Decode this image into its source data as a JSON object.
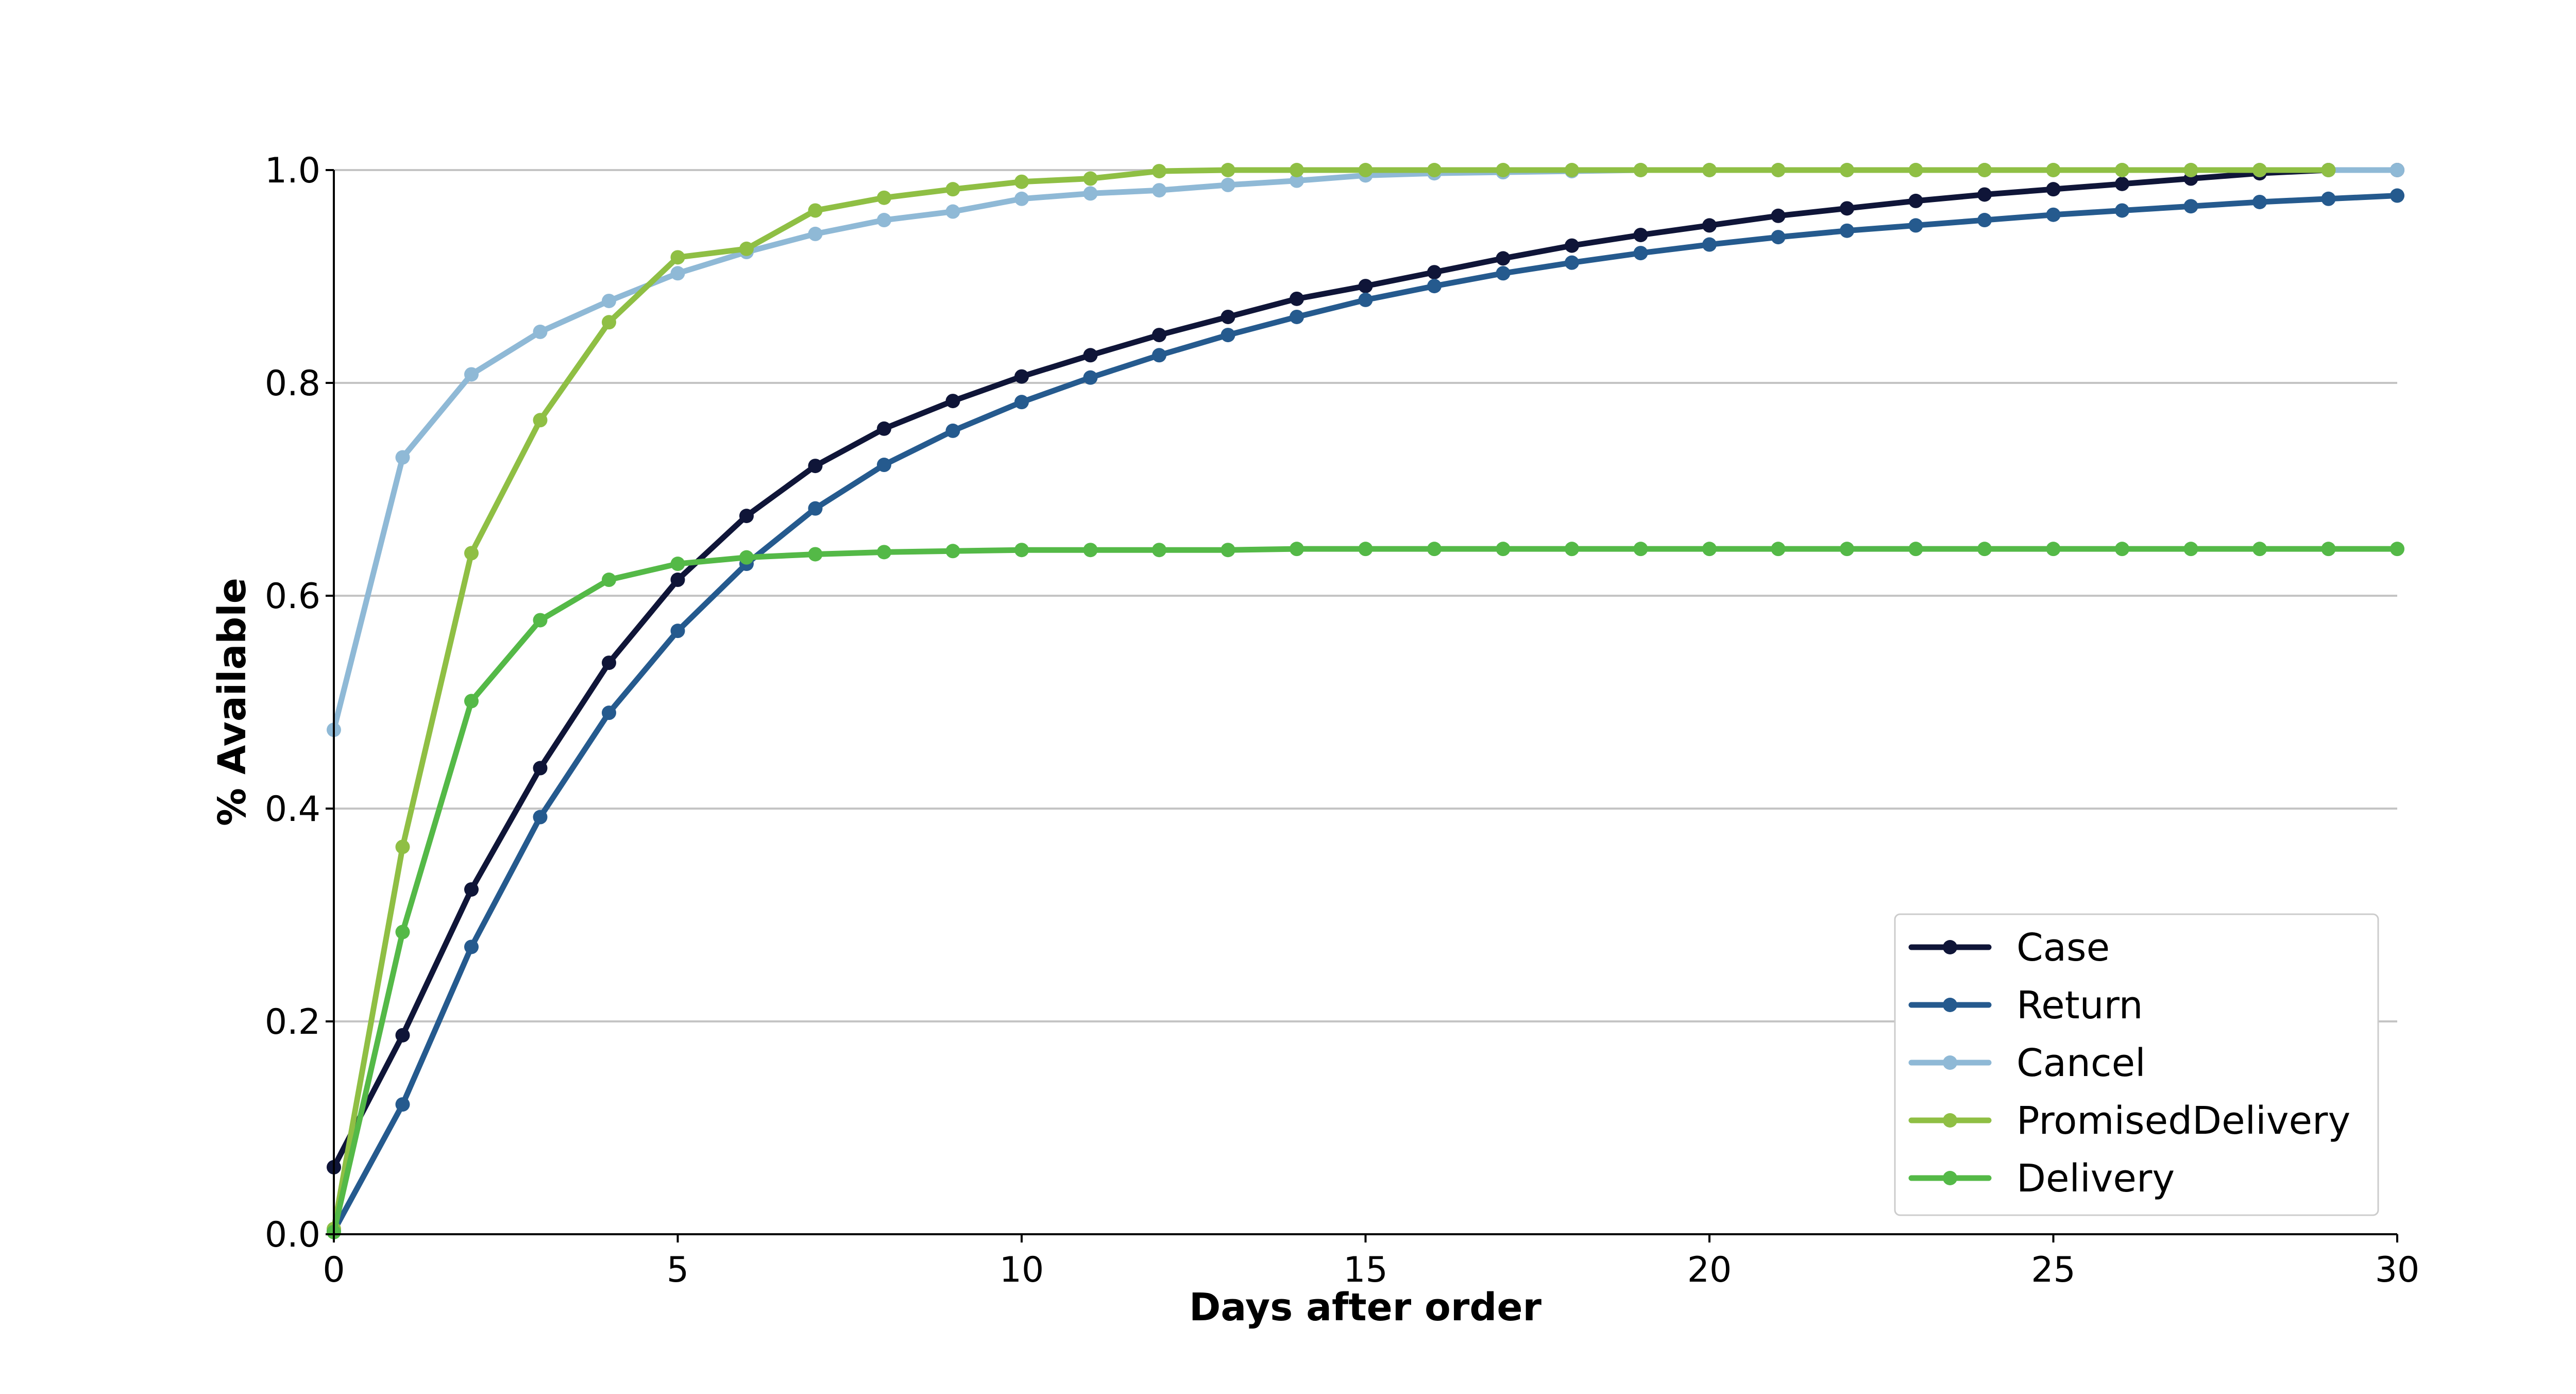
{
  "chart_data": {
    "type": "line",
    "title": "",
    "xlabel": "Days after order",
    "ylabel": "% Available",
    "xlim": [
      0,
      30
    ],
    "ylim": [
      0,
      1
    ],
    "xticks": [
      0,
      5,
      10,
      15,
      20,
      25,
      30
    ],
    "xtick_labels": [
      "0",
      "5",
      "10",
      "15",
      "20",
      "25",
      "30"
    ],
    "yticks": [
      0,
      0.2,
      0.4,
      0.6,
      0.8,
      1.0
    ],
    "ytick_labels": [
      "0.0",
      "0.2",
      "0.4",
      "0.6",
      "0.8",
      "1.0"
    ],
    "grid": "horizontal",
    "legend": "lower-right",
    "series": [
      {
        "name": "Case",
        "color": "#0f1538",
        "x": [
          0,
          1,
          2,
          3,
          4,
          5,
          6,
          7,
          8,
          9,
          10,
          11,
          12,
          13,
          14,
          15,
          16,
          17,
          18,
          19,
          20,
          21,
          22,
          23,
          24,
          25,
          26,
          27,
          28,
          29,
          30
        ],
        "values": [
          0.063,
          0.187,
          0.324,
          0.438,
          0.537,
          0.615,
          0.675,
          0.722,
          0.757,
          0.783,
          0.806,
          0.826,
          0.845,
          0.862,
          0.879,
          0.891,
          0.904,
          0.917,
          0.929,
          0.939,
          0.948,
          0.957,
          0.964,
          0.971,
          0.977,
          0.982,
          0.987,
          0.992,
          0.997,
          1.0,
          1.0
        ]
      },
      {
        "name": "Return",
        "color": "#255a8e",
        "x": [
          0,
          1,
          2,
          3,
          4,
          5,
          6,
          7,
          8,
          9,
          10,
          11,
          12,
          13,
          14,
          15,
          16,
          17,
          18,
          19,
          20,
          21,
          22,
          23,
          24,
          25,
          26,
          27,
          28,
          29,
          30
        ],
        "values": [
          0.003,
          0.122,
          0.27,
          0.392,
          0.49,
          0.567,
          0.63,
          0.682,
          0.723,
          0.755,
          0.782,
          0.805,
          0.826,
          0.845,
          0.862,
          0.878,
          0.891,
          0.903,
          0.913,
          0.922,
          0.93,
          0.937,
          0.943,
          0.948,
          0.953,
          0.958,
          0.962,
          0.966,
          0.97,
          0.973,
          0.976
        ]
      },
      {
        "name": "Cancel",
        "color": "#8fb9d6",
        "x": [
          0,
          1,
          2,
          3,
          4,
          5,
          6,
          7,
          8,
          9,
          10,
          11,
          12,
          13,
          14,
          15,
          16,
          17,
          18,
          19,
          20,
          21,
          22,
          23,
          24,
          25,
          26,
          27,
          28,
          29,
          30
        ],
        "values": [
          0.474,
          0.73,
          0.808,
          0.848,
          0.877,
          0.903,
          0.923,
          0.94,
          0.953,
          0.961,
          0.973,
          0.978,
          0.981,
          0.986,
          0.99,
          0.995,
          0.997,
          0.998,
          0.999,
          1.0,
          1.0,
          1.0,
          1.0,
          1.0,
          1.0,
          1.0,
          1.0,
          1.0,
          1.0,
          1.0,
          1.0
        ]
      },
      {
        "name": "PromisedDelivery",
        "color": "#8fbf44",
        "x": [
          0,
          1,
          2,
          3,
          4,
          5,
          6,
          7,
          8,
          9,
          10,
          11,
          12,
          13,
          14,
          15,
          16,
          17,
          18,
          19,
          20,
          21,
          22,
          23,
          24,
          25,
          26,
          27,
          28,
          29
        ],
        "values": [
          0.005,
          0.364,
          0.64,
          0.765,
          0.857,
          0.918,
          0.926,
          0.962,
          0.974,
          0.982,
          0.989,
          0.992,
          0.999,
          1.0,
          1.0,
          1.0,
          1.0,
          1.0,
          1.0,
          1.0,
          1.0,
          1.0,
          1.0,
          1.0,
          1.0,
          1.0,
          1.0,
          1.0,
          1.0,
          1.0
        ]
      },
      {
        "name": "Delivery",
        "color": "#54b947",
        "x": [
          0,
          1,
          2,
          3,
          4,
          5,
          6,
          7,
          8,
          9,
          10,
          11,
          12,
          13,
          14,
          15,
          16,
          17,
          18,
          19,
          20,
          21,
          22,
          23,
          24,
          25,
          26,
          27,
          28,
          29,
          30
        ],
        "values": [
          0.002,
          0.284,
          0.501,
          0.577,
          0.615,
          0.63,
          0.636,
          0.639,
          0.641,
          0.642,
          0.643,
          0.643,
          0.643,
          0.643,
          0.644,
          0.644,
          0.644,
          0.644,
          0.644,
          0.644,
          0.644,
          0.644,
          0.644,
          0.644,
          0.644,
          0.644,
          0.644,
          0.644,
          0.644,
          0.644,
          0.644
        ]
      }
    ]
  }
}
